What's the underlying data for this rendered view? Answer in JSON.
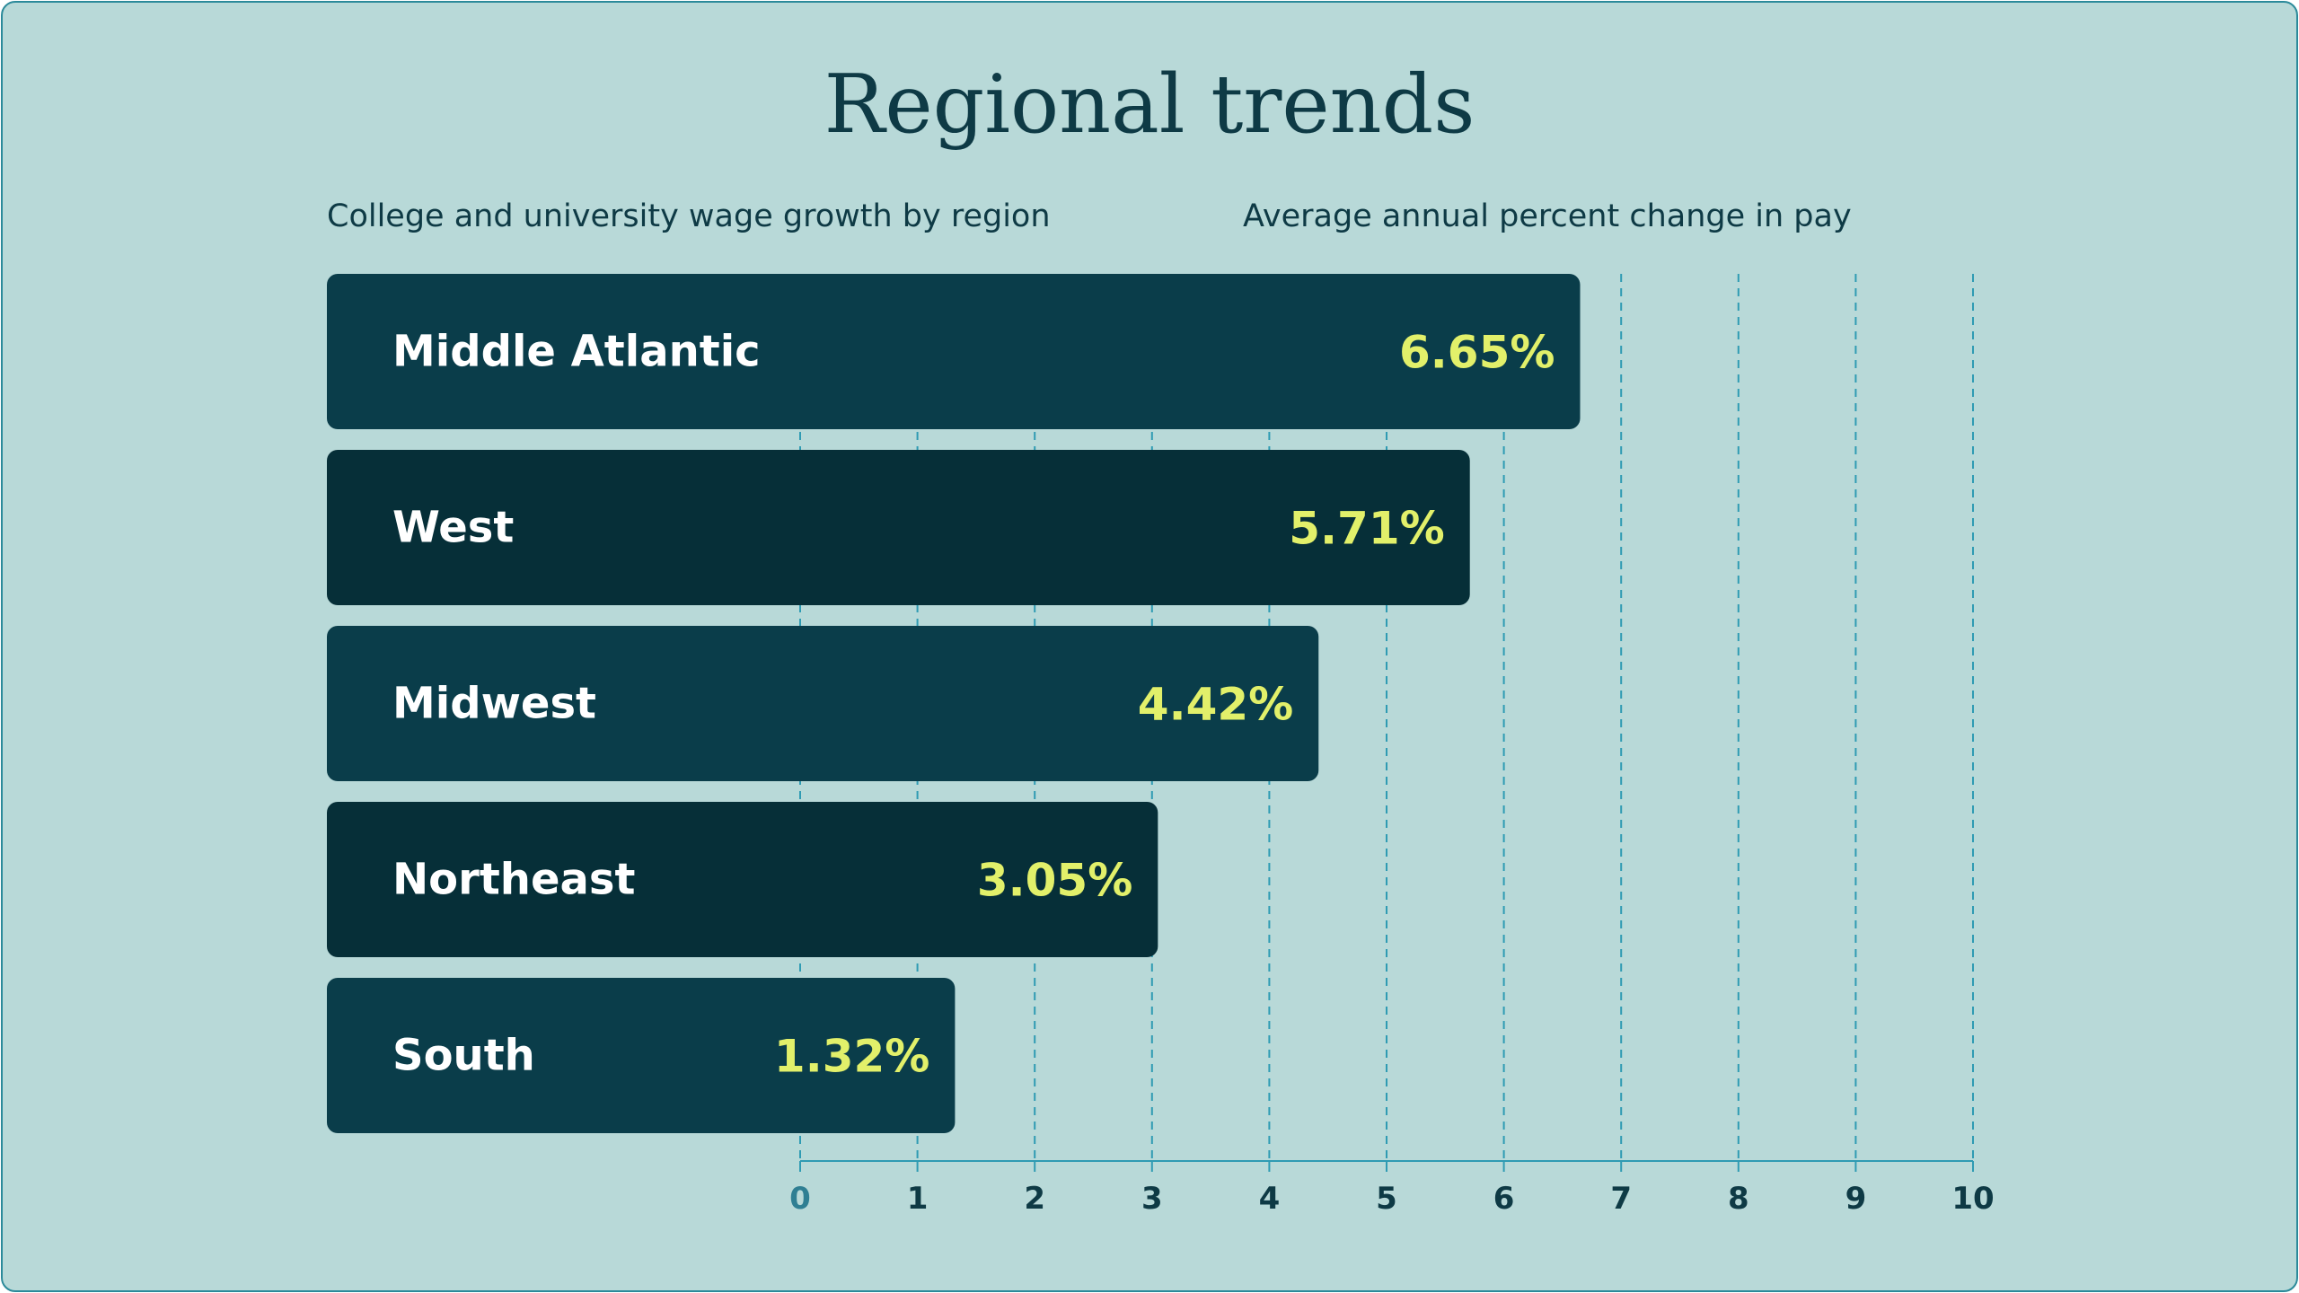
{
  "chart_data": {
    "type": "bar",
    "orientation": "horizontal",
    "title": "Regional trends",
    "subtitle_left": "College and university wage growth by region",
    "subtitle_right": "Average annual percent change in pay",
    "categories": [
      "Middle Atlantic",
      "West",
      "Midwest",
      "Northeast",
      "South"
    ],
    "values": [
      6.65,
      5.71,
      4.42,
      3.05,
      1.32
    ],
    "value_labels": [
      "6.65%",
      "5.71%",
      "4.42%",
      "3.05%",
      "1.32%"
    ],
    "xlim": [
      0,
      10
    ],
    "x_ticks": [
      0,
      1,
      2,
      3,
      4,
      5,
      6,
      7,
      8,
      9,
      10
    ],
    "x_tick_labels": [
      "0",
      "1",
      "2",
      "3",
      "4",
      "5",
      "6",
      "7",
      "8",
      "9",
      "10"
    ],
    "grid": "vertical dashed"
  },
  "colors": {
    "background": "#b8d9d8",
    "bar_dark": "#0a3d4a",
    "bar_darker": "#062f38",
    "value_label": "#e2f06a",
    "category_label": "#ffffff",
    "text": "#0e3a45",
    "gridline": "#2f9bb3",
    "axis": "#2f9bb3",
    "zero_tick": "#2f7f93"
  }
}
